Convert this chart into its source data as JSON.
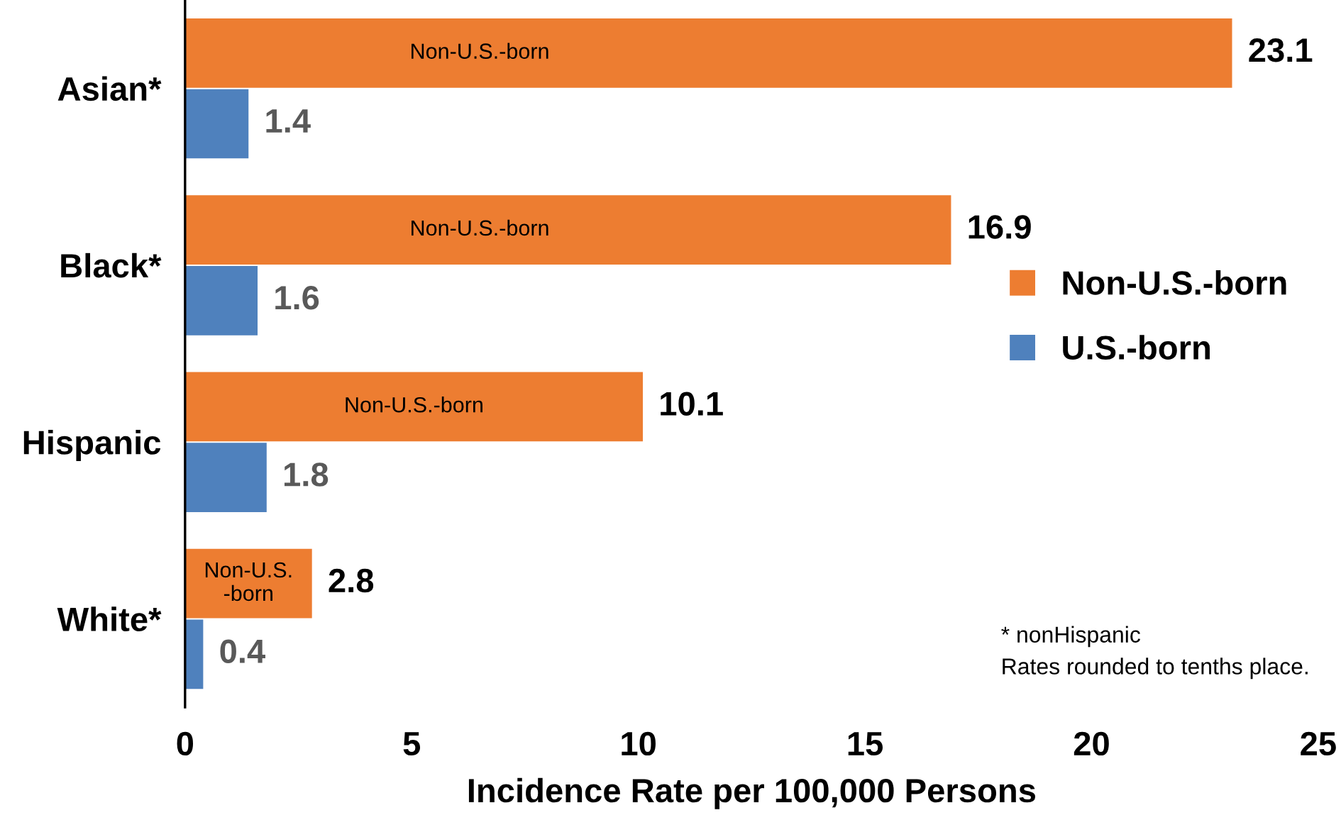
{
  "chart_data": {
    "type": "bar",
    "orientation": "horizontal",
    "xlabel": "Incidence Rate per 100,000 Persons",
    "categories": [
      "Asian*",
      "Black*",
      "Hispanic",
      "White*"
    ],
    "series": [
      {
        "name": "Non-U.S.-born",
        "color": "#ed7d31",
        "values": [
          23.1,
          16.9,
          10.1,
          2.8
        ]
      },
      {
        "name": "U.S.-born",
        "color": "#4f81bd",
        "values": [
          1.4,
          1.6,
          1.8,
          0.4
        ]
      }
    ],
    "xlim": [
      0,
      25
    ],
    "xticks": [
      0,
      5,
      10,
      15,
      20,
      25
    ],
    "grid": false,
    "legend": "right",
    "data_labels": true,
    "annotations": [
      {
        "text": "Non-U.S.-born",
        "y": "Asian*"
      },
      {
        "text": "Non-U.S.-born",
        "y": "Black*"
      },
      {
        "text": "Non-U.S.-born",
        "y": "Hispanic"
      },
      {
        "text": "Non-U.S.-born",
        "y": "White*"
      },
      "* nonHispanic",
      "Rates rounded to tenths place."
    ]
  }
}
